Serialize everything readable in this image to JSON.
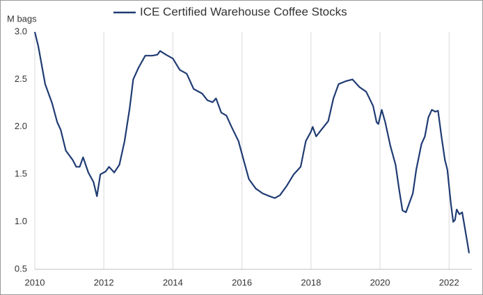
{
  "chart_data": {
    "type": "line",
    "title": "ICE Certified Warehouse Coffee Stocks",
    "y_label": "M bags",
    "x": [
      2010.0,
      2010.1,
      2010.3,
      2010.5,
      2010.65,
      2010.75,
      2010.9,
      2011.1,
      2011.2,
      2011.3,
      2011.4,
      2011.55,
      2011.7,
      2011.8,
      2011.9,
      2012.05,
      2012.15,
      2012.3,
      2012.45,
      2012.6,
      2012.75,
      2012.85,
      2013.0,
      2013.2,
      2013.4,
      2013.55,
      2013.63,
      2013.8,
      2014.0,
      2014.2,
      2014.4,
      2014.6,
      2014.85,
      2015.0,
      2015.15,
      2015.25,
      2015.4,
      2015.55,
      2015.7,
      2015.9,
      2016.05,
      2016.2,
      2016.4,
      2016.6,
      2016.8,
      2016.95,
      2017.1,
      2017.3,
      2017.5,
      2017.7,
      2017.85,
      2018.0,
      2018.05,
      2018.15,
      2018.3,
      2018.5,
      2018.65,
      2018.8,
      2019.0,
      2019.2,
      2019.4,
      2019.6,
      2019.8,
      2019.9,
      2019.95,
      2020.05,
      2020.15,
      2020.3,
      2020.45,
      2020.55,
      2020.65,
      2020.75,
      2020.95,
      2021.05,
      2021.2,
      2021.3,
      2021.4,
      2021.5,
      2021.6,
      2021.68,
      2021.78,
      2021.88,
      2021.95,
      2022.05,
      2022.12,
      2022.17,
      2022.22,
      2022.3,
      2022.38,
      2022.45,
      2022.52,
      2022.58
    ],
    "series": [
      {
        "name": "ICE Certified Warehouse Coffee Stocks",
        "color": "#1f3b73",
        "values": [
          3.0,
          2.85,
          2.45,
          2.25,
          2.05,
          1.97,
          1.75,
          1.65,
          1.58,
          1.58,
          1.68,
          1.52,
          1.42,
          1.27,
          1.5,
          1.53,
          1.58,
          1.52,
          1.6,
          1.85,
          2.2,
          2.5,
          2.62,
          2.75,
          2.75,
          2.76,
          2.8,
          2.76,
          2.72,
          2.6,
          2.56,
          2.4,
          2.35,
          2.28,
          2.26,
          2.3,
          2.15,
          2.12,
          2.0,
          1.85,
          1.65,
          1.45,
          1.35,
          1.3,
          1.27,
          1.25,
          1.28,
          1.38,
          1.5,
          1.58,
          1.85,
          1.95,
          2.0,
          1.9,
          1.97,
          2.06,
          2.3,
          2.45,
          2.48,
          2.5,
          2.42,
          2.37,
          2.22,
          2.05,
          2.03,
          2.18,
          2.05,
          1.8,
          1.6,
          1.35,
          1.12,
          1.1,
          1.3,
          1.55,
          1.82,
          1.9,
          2.1,
          2.18,
          2.16,
          2.17,
          1.9,
          1.65,
          1.55,
          1.2,
          1.0,
          1.02,
          1.13,
          1.08,
          1.1,
          0.95,
          0.8,
          0.67
        ]
      }
    ],
    "xlim": [
      2010,
      2022.66
    ],
    "xticks": [
      2010,
      2012,
      2014,
      2016,
      2018,
      2020,
      2022
    ],
    "ylim": [
      0.5,
      3.0
    ],
    "yticks": [
      {
        "value": 0.5,
        "label": "0.5"
      },
      {
        "value": 1,
        "label": "1.0"
      },
      {
        "value": 1.5,
        "label": "1.5"
      },
      {
        "value": 2,
        "label": "2.0"
      },
      {
        "value": 2.5,
        "label": "2.5"
      },
      {
        "value": 3,
        "label": "3.0"
      }
    ],
    "grid": "x",
    "legend": "top"
  }
}
